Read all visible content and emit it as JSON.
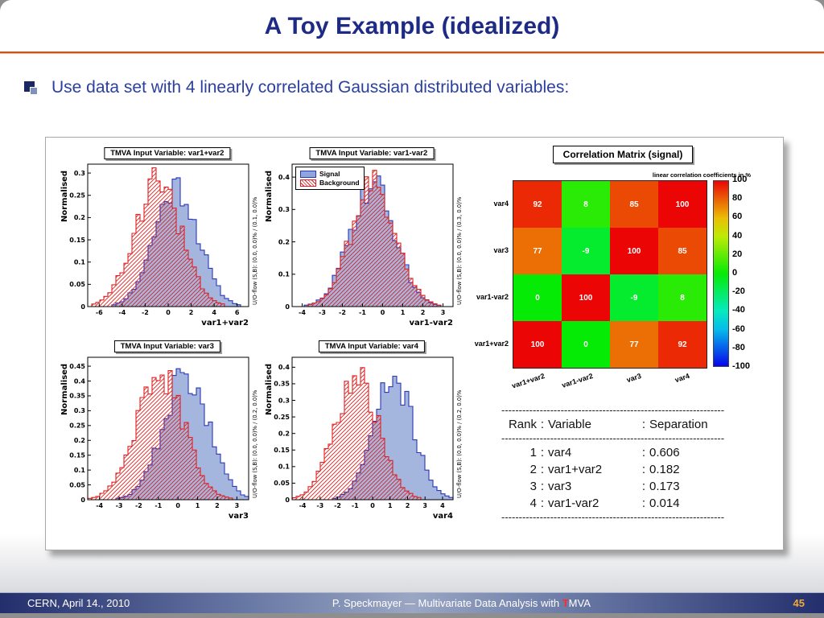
{
  "slide": {
    "title": "A Toy Example (idealized)",
    "bullet_text": "Use data set with 4 linearly correlated Gaussian distributed variables:"
  },
  "legend": {
    "signal": "Signal",
    "background": "Background"
  },
  "chart_data": {
    "plots": [
      {
        "type": "histogram",
        "title": "TMVA Input Variable: var1+var2",
        "xlabel": "var1+var2",
        "ylabel": "Normalised",
        "uoflow": "U/O-flow (S,B): (0.0, 0.0)% / (0.1, 0.0)%",
        "xmin": -7,
        "xmax": 7,
        "xticks": [
          -6,
          -4,
          -2,
          0,
          2,
          4,
          6
        ],
        "ymax": 0.32,
        "yticks": [
          0,
          0.05,
          0.1,
          0.15,
          0.2,
          0.25,
          0.3
        ],
        "legend": false,
        "signal": {
          "mean": 0.7,
          "sigma": 1.9,
          "peak": 0.27
        },
        "background": {
          "mean": -0.9,
          "sigma": 2.0,
          "peak": 0.28
        },
        "seed": 11
      },
      {
        "type": "histogram",
        "title": "TMVA Input Variable: var1-var2",
        "xlabel": "var1-var2",
        "ylabel": "Normalised",
        "uoflow": "U/O-flow (S,B): (0.0, 0.0)% / (0.3, 0.0)%",
        "xmin": -4.5,
        "xmax": 3.5,
        "xticks": [
          -4,
          -3,
          -2,
          -1,
          0,
          1,
          2,
          3
        ],
        "ymax": 0.44,
        "yticks": [
          0,
          0.1,
          0.2,
          0.3,
          0.4
        ],
        "legend": true,
        "signal": {
          "mean": -0.5,
          "sigma": 1.1,
          "peak": 0.38
        },
        "background": {
          "mean": -0.45,
          "sigma": 1.1,
          "peak": 0.38
        },
        "seed": 29
      },
      {
        "type": "histogram",
        "title": "TMVA Input Variable: var3",
        "xlabel": "var3",
        "ylabel": "Normalised",
        "uoflow": "U/O-flow (S,B): (0.0, 0.0)% / (0.2, 0.0)%",
        "xmin": -4.6,
        "xmax": 3.6,
        "xticks": [
          -4,
          -3,
          -2,
          -1,
          0,
          1,
          2,
          3
        ],
        "ymax": 0.48,
        "yticks": [
          0,
          0.05,
          0.1,
          0.15,
          0.2,
          0.25,
          0.3,
          0.35,
          0.4,
          0.45
        ],
        "legend": false,
        "signal": {
          "mean": 0.4,
          "sigma": 1.15,
          "peak": 0.42
        },
        "background": {
          "mean": -0.9,
          "sigma": 1.2,
          "peak": 0.42
        },
        "seed": 47
      },
      {
        "type": "histogram",
        "title": "TMVA Input Variable: var4",
        "xlabel": "var4",
        "ylabel": "Normalised",
        "uoflow": "U/O-flow (S,B): (0.0, 0.0)% / (0.2, 0.0)%",
        "xmin": -4.6,
        "xmax": 4.6,
        "xticks": [
          -4,
          -3,
          -2,
          -1,
          0,
          1,
          2,
          3,
          4
        ],
        "ymax": 0.43,
        "yticks": [
          0,
          0.05,
          0.1,
          0.15,
          0.2,
          0.25,
          0.3,
          0.35,
          0.4
        ],
        "legend": false,
        "signal": {
          "mean": 1.2,
          "sigma": 1.15,
          "peak": 0.36
        },
        "background": {
          "mean": -0.9,
          "sigma": 1.25,
          "peak": 0.37
        },
        "seed": 71
      }
    ],
    "matrix": {
      "type": "heatmap",
      "title": "Correlation Matrix (signal)",
      "subtitle": "linear correlation coefficients in %",
      "columns": [
        "var1+var2",
        "var1-var2",
        "var3",
        "var4"
      ],
      "rows": [
        "var4",
        "var3",
        "var1-var2",
        "var1+var2"
      ],
      "values": [
        [
          92,
          8,
          85,
          100
        ],
        [
          77,
          -9,
          100,
          85
        ],
        [
          0,
          100,
          -9,
          8
        ],
        [
          100,
          0,
          77,
          92
        ]
      ],
      "scale_range": [
        -100,
        100
      ],
      "colorbar_ticks": [
        100,
        80,
        60,
        40,
        20,
        0,
        -20,
        -40,
        -60,
        -80,
        -100
      ]
    }
  },
  "rank": {
    "header": {
      "rank": "Rank",
      "variable": "Variable",
      "separation": "Separation"
    },
    "rows": [
      {
        "rank": "1",
        "variable": "var4",
        "separation": "0.606"
      },
      {
        "rank": "2",
        "variable": "var1+var2",
        "separation": "0.182"
      },
      {
        "rank": "3",
        "variable": "var3",
        "separation": "0.173"
      },
      {
        "rank": "4",
        "variable": "var1-var2",
        "separation": "0.014"
      }
    ],
    "dashes": "----------------------------------------------------------------"
  },
  "footer": {
    "left": "CERN, April 14., 2010",
    "center_pre": "P. Speckmayer — Multivariate Data Analysis with ",
    "center_t": "T",
    "center_post": "MVA",
    "page": "45"
  },
  "colors": {
    "title": "#1e2b86",
    "bullet": "#2b3f9e",
    "accent": "#c9541b",
    "signal_fill": "#7f97d0",
    "signal_stroke": "#2937b8",
    "background_red": "#e02020",
    "footer_page": "#f2a93b"
  }
}
